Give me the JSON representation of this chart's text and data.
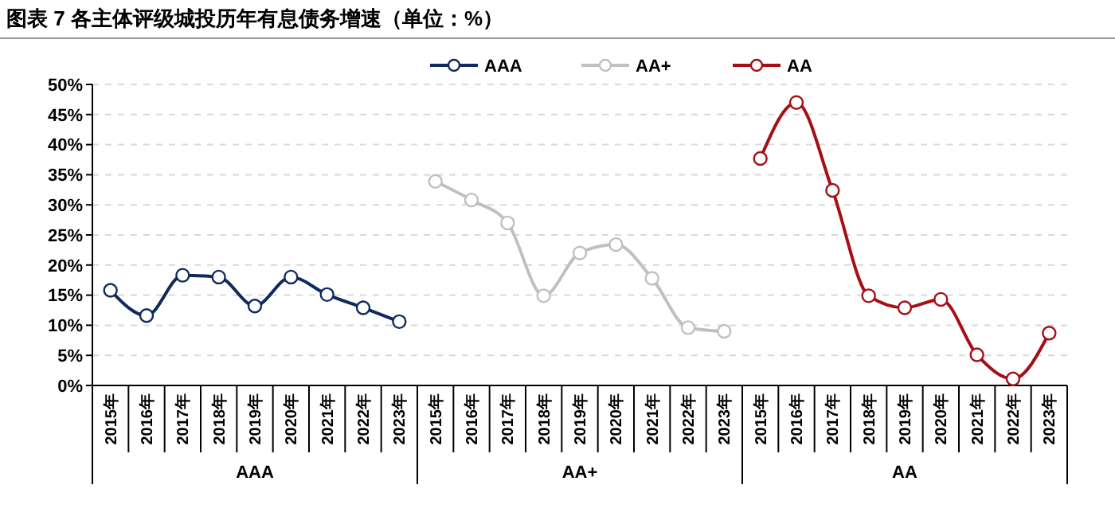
{
  "chart_data": {
    "type": "line",
    "title": "图表 7 各主体评级城投历年有息债务增速（单位：%）",
    "categories": [
      "2015年",
      "2016年",
      "2017年",
      "2018年",
      "2019年",
      "2020年",
      "2021年",
      "2022年",
      "2023年",
      "2015年",
      "2016年",
      "2017年",
      "2018年",
      "2019年",
      "2020年",
      "2021年",
      "2022年",
      "2023年",
      "2015年",
      "2016年",
      "2017年",
      "2018年",
      "2019年",
      "2020年",
      "2021年",
      "2022年",
      "2023年"
    ],
    "series": [
      {
        "name": "AAA",
        "color": "#0f2a5c",
        "values": [
          15.8,
          11.6,
          18.3,
          18.0,
          13.2,
          18.0,
          15.1,
          12.9,
          10.6,
          null,
          null,
          null,
          null,
          null,
          null,
          null,
          null,
          null,
          null,
          null,
          null,
          null,
          null,
          null,
          null,
          null,
          null
        ]
      },
      {
        "name": "AA+",
        "color": "#c0c0c0",
        "values": [
          null,
          null,
          null,
          null,
          null,
          null,
          null,
          null,
          null,
          33.9,
          30.8,
          27.0,
          14.9,
          22.0,
          23.4,
          17.8,
          9.6,
          9.0,
          null,
          null,
          null,
          null,
          null,
          null,
          null,
          null,
          null
        ]
      },
      {
        "name": "AA",
        "color": "#a50f15",
        "values": [
          null,
          null,
          null,
          null,
          null,
          null,
          null,
          null,
          null,
          null,
          null,
          null,
          null,
          null,
          null,
          null,
          null,
          null,
          37.7,
          47.0,
          32.4,
          14.9,
          12.9,
          14.3,
          5.1,
          1.1,
          8.7
        ]
      }
    ],
    "annotations": [
      "AAA",
      "AA+",
      "AA"
    ],
    "ylim": [
      0,
      50
    ],
    "yticks": [
      {
        "value": 0,
        "label": "0%"
      },
      {
        "value": 5,
        "label": "5%"
      },
      {
        "value": 10,
        "label": "10%"
      },
      {
        "value": 15,
        "label": "15%"
      },
      {
        "value": 20,
        "label": "20%"
      },
      {
        "value": 25,
        "label": "25%"
      },
      {
        "value": 30,
        "label": "30%"
      },
      {
        "value": 35,
        "label": "35%"
      },
      {
        "value": 40,
        "label": "40%"
      },
      {
        "value": 45,
        "label": "45%"
      },
      {
        "value": 50,
        "label": "50%"
      }
    ],
    "grid": "y",
    "legend": "top",
    "marker": "circle",
    "line_style": "solid"
  }
}
